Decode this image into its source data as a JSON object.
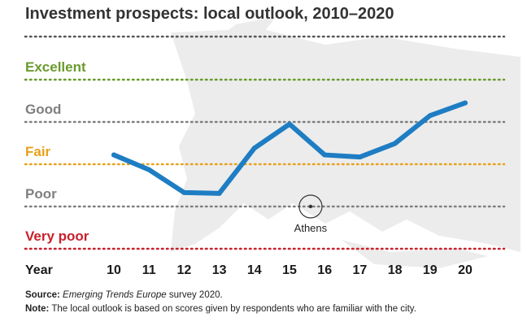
{
  "chart_data": {
    "type": "line",
    "title": "Investment prospects: local outlook, 2010–2020",
    "xlabel": "Year",
    "categories": [
      "10",
      "11",
      "12",
      "13",
      "14",
      "15",
      "16",
      "17",
      "18",
      "19",
      "20"
    ],
    "levels": [
      {
        "label": "Excellent",
        "value": 5,
        "color": "#6a9a2e"
      },
      {
        "label": "Good",
        "value": 4,
        "color": "#7f7f7f"
      },
      {
        "label": "Fair",
        "value": 3,
        "color": "#e8a11c"
      },
      {
        "label": "Poor",
        "value": 2,
        "color": "#7f7f7f"
      },
      {
        "label": "Very poor",
        "value": 1,
        "color": "#c9202b"
      }
    ],
    "series": [
      {
        "values": [
          3.22,
          2.87,
          2.33,
          2.31,
          3.38,
          3.95,
          3.22,
          3.17,
          3.49,
          4.15,
          4.45
        ],
        "color": "#1e7dc3"
      }
    ],
    "ylim": [
      1,
      5.7
    ],
    "annotations": [
      {
        "text": "Athens",
        "x_index": 5.6,
        "y": 2
      }
    ]
  },
  "footer": {
    "source_label": "Source:",
    "source_text": "Emerging Trends Europe",
    "source_rest": " survey 2020.",
    "note_label": "Note:",
    "note_text": " The local outlook is based on scores given by respondents who are familiar with the city."
  }
}
